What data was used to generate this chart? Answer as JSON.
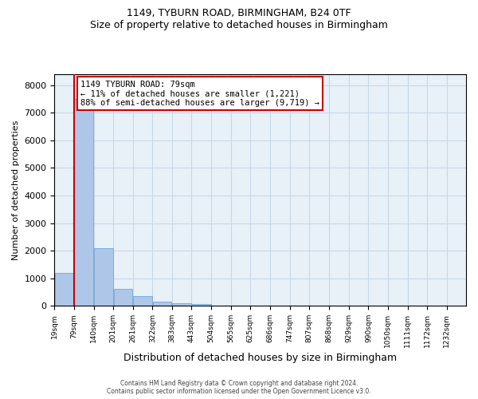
{
  "title_line1": "1149, TYBURN ROAD, BIRMINGHAM, B24 0TF",
  "title_line2": "Size of property relative to detached houses in Birmingham",
  "xlabel": "Distribution of detached houses by size in Birmingham",
  "ylabel": "Number of detached properties",
  "bin_labels": [
    "19sqm",
    "79sqm",
    "140sqm",
    "201sqm",
    "261sqm",
    "322sqm",
    "383sqm",
    "443sqm",
    "504sqm",
    "565sqm",
    "625sqm",
    "686sqm",
    "747sqm",
    "807sqm",
    "868sqm",
    "929sqm",
    "990sqm",
    "1050sqm",
    "1111sqm",
    "1172sqm",
    "1232sqm"
  ],
  "bin_edges": [
    19,
    79,
    140,
    201,
    261,
    322,
    383,
    443,
    504,
    565,
    625,
    686,
    747,
    807,
    868,
    929,
    990,
    1050,
    1111,
    1172,
    1232
  ],
  "bar_heights": [
    1200,
    7500,
    2100,
    600,
    350,
    150,
    100,
    50,
    20,
    10,
    5,
    5,
    3,
    2,
    1,
    1,
    0,
    0,
    0,
    0
  ],
  "bar_color": "#aec6e8",
  "bar_edge_color": "#5a9fd4",
  "property_size": 79,
  "property_label": "1149 TYBURN ROAD: 79sqm",
  "annotation_line1": "1149 TYBURN ROAD: 79sqm",
  "annotation_line2": "← 11% of detached houses are smaller (1,221)",
  "annotation_line3": "88% of semi-detached houses are larger (9,719) →",
  "vline_color": "#cc0000",
  "annotation_box_color": "#ffffff",
  "annotation_box_edge": "#cc0000",
  "ylim": [
    0,
    8400
  ],
  "yticks": [
    0,
    1000,
    2000,
    3000,
    4000,
    5000,
    6000,
    7000,
    8000
  ],
  "grid_color": "#c8d8e8",
  "background_color": "#e8f0f8",
  "footer_line1": "Contains HM Land Registry data © Crown copyright and database right 2024.",
  "footer_line2": "Contains public sector information licensed under the Open Government Licence v3.0."
}
